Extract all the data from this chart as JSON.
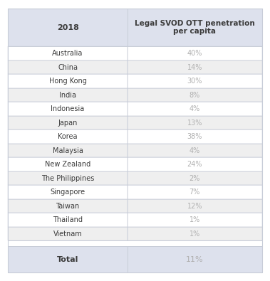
{
  "header_col1": "2018",
  "header_col2": "Legal SVOD OTT penetration\nper capita",
  "rows": [
    [
      "Australia",
      "40%"
    ],
    [
      "China",
      "14%"
    ],
    [
      "Hong Kong",
      "30%"
    ],
    [
      "India",
      "8%"
    ],
    [
      "Indonesia",
      "4%"
    ],
    [
      "Japan",
      "13%"
    ],
    [
      "Korea",
      "38%"
    ],
    [
      "Malaysia",
      "4%"
    ],
    [
      "New Zealand",
      "24%"
    ],
    [
      "The Philippines",
      "2%"
    ],
    [
      "Singapore",
      "7%"
    ],
    [
      "Taiwan",
      "12%"
    ],
    [
      "Thailand",
      "1%"
    ],
    [
      "Vietnam",
      "1%"
    ]
  ],
  "total_label": "Total",
  "total_value": "11%",
  "header_bg": "#dde1ed",
  "row_bg_even": "#efefef",
  "row_bg_odd": "#ffffff",
  "total_bg": "#dde1ed",
  "header_text_color": "#3b3b3b",
  "row_text_color_col1": "#3b3b3b",
  "row_text_color_col2": "#b0b0b0",
  "total_text_color": "#3b3b3b",
  "total_value_color": "#b0b0b0",
  "border_color": "#c8cdd8",
  "gap_color": "#ffffff",
  "fig_bg": "#ffffff"
}
